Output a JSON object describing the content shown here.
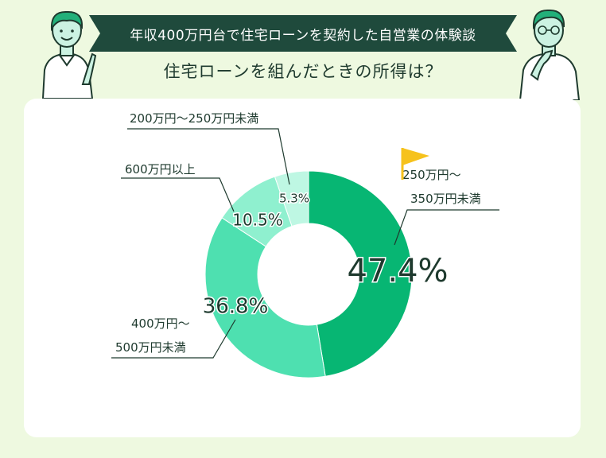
{
  "header": {
    "banner_title": "年収400万円台で住宅ローンを契約した自営業の体験談",
    "question": "住宅ローンを組んだときの所得は？"
  },
  "colors": {
    "banner": "#1f4a3c",
    "background": "#eef9e0",
    "highlight_flag": "#f6c21c"
  },
  "chart_data": {
    "type": "pie",
    "variant": "donut",
    "slices": [
      {
        "label": "250万円〜\n350万円未満",
        "value": 47.4,
        "value_label": "47.4%",
        "color": "#07b673",
        "highlighted": true
      },
      {
        "label": "400万円〜\n500万円未満",
        "value": 36.8,
        "value_label": "36.8%",
        "color": "#4ee0b0",
        "highlighted": false
      },
      {
        "label": "600万円以上",
        "value": 10.5,
        "value_label": "10.5%",
        "color": "#8ff0cf",
        "highlighted": false
      },
      {
        "label": "200万円〜250万円未満",
        "value": 5.3,
        "value_label": "5.3%",
        "color": "#bef7e3",
        "highlighted": false
      }
    ]
  }
}
